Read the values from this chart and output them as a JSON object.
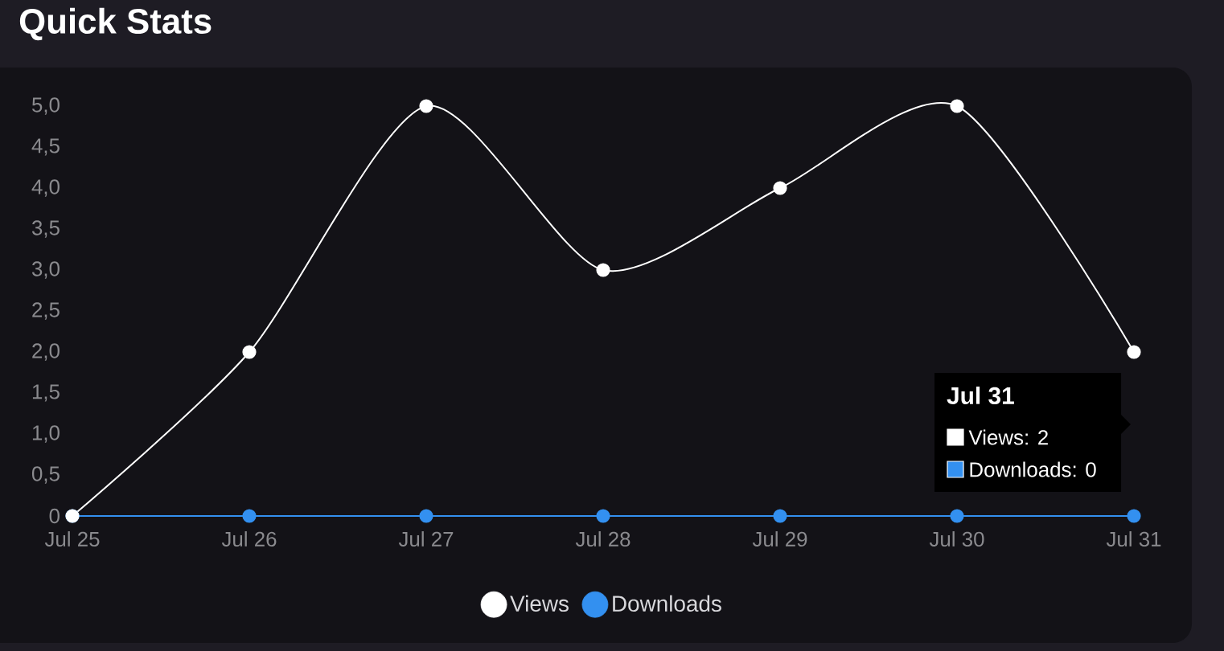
{
  "chart_data": {
    "type": "line",
    "title": "Quick Stats",
    "categories": [
      "Jul 25",
      "Jul 26",
      "Jul 27",
      "Jul 28",
      "Jul 29",
      "Jul 30",
      "Jul 31"
    ],
    "series": [
      {
        "name": "Views",
        "color": "#ffffff",
        "values": [
          0,
          2,
          5,
          3,
          4,
          5,
          2
        ]
      },
      {
        "name": "Downloads",
        "color": "#3390f0",
        "values": [
          0,
          0,
          0,
          0,
          0,
          0,
          0
        ]
      }
    ],
    "ylim": [
      0,
      5
    ],
    "yticks": [
      0,
      {
        "value": 0.5,
        "label": "0,5"
      },
      {
        "value": 1,
        "label": "1,0"
      },
      {
        "value": 1.5,
        "label": "1,5"
      },
      {
        "value": 2,
        "label": "2,0"
      },
      {
        "value": 2.5,
        "label": "2,5"
      },
      {
        "value": 3,
        "label": "3,0"
      },
      {
        "value": 3.5,
        "label": "3,5"
      },
      {
        "value": 4,
        "label": "4,0"
      },
      {
        "value": 4.5,
        "label": "4,5"
      },
      {
        "value": 5,
        "label": "5,0"
      }
    ],
    "marker": "circle",
    "legend": "bottom",
    "annotations": [
      "Jul 31",
      "Views: 2",
      "Downloads: 0"
    ]
  }
}
